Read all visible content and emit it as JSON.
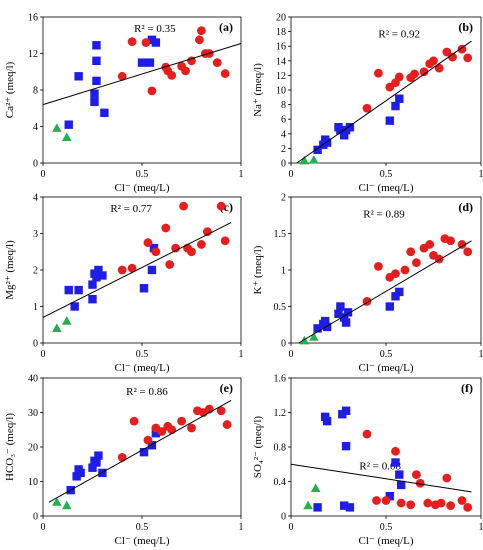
{
  "chart_data": [
    {
      "type": "scatter",
      "panel_label": "(a)",
      "r2_label": "R² = 0.35",
      "xlabel": "Cl⁻ (meq/L)",
      "ylabel": "Ca²⁺ (meq/l)",
      "xlim": [
        0,
        1
      ],
      "ylim": [
        0,
        16
      ],
      "xticks": [
        "0",
        "0.5",
        "1"
      ],
      "yticks": [
        "0",
        "4",
        "8",
        "12",
        "16"
      ],
      "trendline": {
        "x": [
          0,
          1
        ],
        "y": [
          6.4,
          13.1
        ]
      },
      "series": [
        {
          "marker": "triangle",
          "color": "#22b14c",
          "points": [
            [
              0.07,
              3.8
            ],
            [
              0.12,
              2.8
            ]
          ]
        },
        {
          "marker": "square",
          "color": "#1e1ee6",
          "points": [
            [
              0.13,
              4.2
            ],
            [
              0.18,
              9.5
            ],
            [
              0.26,
              7.6
            ],
            [
              0.26,
              6.7
            ],
            [
              0.27,
              11.2
            ],
            [
              0.27,
              9.0
            ],
            [
              0.27,
              12.9
            ],
            [
              0.31,
              5.5
            ],
            [
              0.5,
              11.0
            ],
            [
              0.54,
              11.0
            ],
            [
              0.55,
              13.5
            ],
            [
              0.57,
              13.2
            ]
          ]
        },
        {
          "marker": "circle",
          "color": "#e61e1e",
          "points": [
            [
              0.4,
              9.5
            ],
            [
              0.45,
              13.3
            ],
            [
              0.52,
              13.2
            ],
            [
              0.55,
              7.9
            ],
            [
              0.62,
              10.5
            ],
            [
              0.63,
              10.1
            ],
            [
              0.65,
              9.6
            ],
            [
              0.7,
              10.6
            ],
            [
              0.72,
              10.1
            ],
            [
              0.75,
              11.2
            ],
            [
              0.79,
              13.5
            ],
            [
              0.8,
              14.5
            ],
            [
              0.82,
              12.0
            ],
            [
              0.84,
              12.0
            ],
            [
              0.88,
              11.0
            ],
            [
              0.92,
              9.8
            ]
          ]
        }
      ]
    },
    {
      "type": "scatter",
      "panel_label": "(b)",
      "r2_label": "R² = 0.92",
      "xlabel": "Cl⁻ (meq/L)",
      "ylabel": "Na⁺ (meq/l)",
      "xlim": [
        0,
        1
      ],
      "ylim": [
        0,
        20
      ],
      "xticks": [
        "0",
        "0.5",
        "1"
      ],
      "yticks": [
        "0",
        "2",
        "4",
        "6",
        "8",
        "10",
        "12",
        "14",
        "16",
        "18",
        "20"
      ],
      "trendline": {
        "x": [
          0.03,
          0.95
        ],
        "y": [
          0,
          16.7
        ]
      },
      "series": [
        {
          "marker": "triangle",
          "color": "#22b14c",
          "points": [
            [
              0.07,
              0.3
            ],
            [
              0.12,
              0.4
            ]
          ]
        },
        {
          "marker": "square",
          "color": "#1e1ee6",
          "points": [
            [
              0.14,
              1.8
            ],
            [
              0.17,
              2.5
            ],
            [
              0.18,
              3.2
            ],
            [
              0.19,
              2.8
            ],
            [
              0.25,
              4.9
            ],
            [
              0.26,
              4.5
            ],
            [
              0.28,
              3.8
            ],
            [
              0.29,
              4.5
            ],
            [
              0.31,
              4.9
            ],
            [
              0.52,
              5.8
            ],
            [
              0.55,
              7.8
            ],
            [
              0.57,
              8.8
            ]
          ]
        },
        {
          "marker": "circle",
          "color": "#e61e1e",
          "points": [
            [
              0.4,
              7.5
            ],
            [
              0.46,
              12.3
            ],
            [
              0.52,
              10.4
            ],
            [
              0.55,
              11.0
            ],
            [
              0.57,
              11.8
            ],
            [
              0.63,
              11.7
            ],
            [
              0.65,
              12.2
            ],
            [
              0.7,
              12.5
            ],
            [
              0.73,
              13.6
            ],
            [
              0.75,
              14.0
            ],
            [
              0.78,
              13.0
            ],
            [
              0.82,
              15.2
            ],
            [
              0.85,
              14.5
            ],
            [
              0.9,
              15.6
            ],
            [
              0.93,
              14.4
            ]
          ]
        }
      ]
    },
    {
      "type": "scatter",
      "panel_label": "(c)",
      "r2_label": "R² = 0.77",
      "xlabel": "Cl⁻ (meq/L)",
      "ylabel": "Mg²⁺ (meq/l)",
      "xlim": [
        0,
        1
      ],
      "ylim": [
        0,
        4
      ],
      "xticks": [
        "0",
        "0.5",
        "1"
      ],
      "yticks": [
        "0",
        "1",
        "2",
        "3",
        "4"
      ],
      "trendline": {
        "x": [
          0,
          0.95
        ],
        "y": [
          0.7,
          3.3
        ]
      },
      "series": [
        {
          "marker": "triangle",
          "color": "#22b14c",
          "points": [
            [
              0.07,
              0.4
            ],
            [
              0.12,
              0.6
            ]
          ]
        },
        {
          "marker": "square",
          "color": "#1e1ee6",
          "points": [
            [
              0.13,
              1.45
            ],
            [
              0.16,
              1.0
            ],
            [
              0.18,
              1.45
            ],
            [
              0.25,
              1.2
            ],
            [
              0.25,
              1.6
            ],
            [
              0.26,
              1.9
            ],
            [
              0.27,
              1.8
            ],
            [
              0.28,
              2.0
            ],
            [
              0.3,
              1.85
            ],
            [
              0.51,
              1.5
            ],
            [
              0.55,
              2.0
            ],
            [
              0.56,
              2.6
            ]
          ]
        },
        {
          "marker": "circle",
          "color": "#e61e1e",
          "points": [
            [
              0.4,
              2.0
            ],
            [
              0.45,
              2.05
            ],
            [
              0.53,
              2.75
            ],
            [
              0.57,
              2.5
            ],
            [
              0.62,
              3.15
            ],
            [
              0.64,
              2.15
            ],
            [
              0.67,
              2.6
            ],
            [
              0.71,
              3.75
            ],
            [
              0.73,
              2.6
            ],
            [
              0.75,
              2.5
            ],
            [
              0.8,
              2.7
            ],
            [
              0.83,
              3.05
            ],
            [
              0.9,
              3.75
            ],
            [
              0.92,
              2.8
            ]
          ]
        }
      ]
    },
    {
      "type": "scatter",
      "panel_label": "(d)",
      "r2_label": "R² = 0.89",
      "xlabel": "Cl⁻ (meq/L)",
      "ylabel": "K⁺ (meq/l)",
      "xlim": [
        0,
        1
      ],
      "ylim": [
        0,
        2
      ],
      "xticks": [
        "0",
        "0.5",
        "1"
      ],
      "yticks": [
        "0",
        "0.5",
        "1",
        "1.5",
        "2"
      ],
      "trendline": {
        "x": [
          0.04,
          0.95
        ],
        "y": [
          0,
          1.4
        ]
      },
      "series": [
        {
          "marker": "triangle",
          "color": "#22b14c",
          "points": [
            [
              0.07,
              0.03
            ],
            [
              0.12,
              0.08
            ]
          ]
        },
        {
          "marker": "square",
          "color": "#1e1ee6",
          "points": [
            [
              0.14,
              0.2
            ],
            [
              0.17,
              0.26
            ],
            [
              0.18,
              0.3
            ],
            [
              0.19,
              0.22
            ],
            [
              0.25,
              0.4
            ],
            [
              0.26,
              0.5
            ],
            [
              0.28,
              0.35
            ],
            [
              0.29,
              0.28
            ],
            [
              0.3,
              0.42
            ],
            [
              0.52,
              0.5
            ],
            [
              0.55,
              0.64
            ],
            [
              0.57,
              0.7
            ]
          ]
        },
        {
          "marker": "circle",
          "color": "#e61e1e",
          "points": [
            [
              0.4,
              0.57
            ],
            [
              0.46,
              1.05
            ],
            [
              0.52,
              0.9
            ],
            [
              0.55,
              0.95
            ],
            [
              0.6,
              1.0
            ],
            [
              0.63,
              1.25
            ],
            [
              0.66,
              1.1
            ],
            [
              0.7,
              1.3
            ],
            [
              0.73,
              1.35
            ],
            [
              0.75,
              1.2
            ],
            [
              0.78,
              1.15
            ],
            [
              0.81,
              1.43
            ],
            [
              0.84,
              1.4
            ],
            [
              0.9,
              1.35
            ],
            [
              0.93,
              1.25
            ]
          ]
        }
      ]
    },
    {
      "type": "scatter",
      "panel_label": "(e)",
      "r2_label": "R² = 0.86",
      "xlabel": "Cl⁻ (meq/L)",
      "ylabel": "HCO₃⁻ (meq/l)",
      "xlim": [
        0,
        1
      ],
      "ylim": [
        0,
        40
      ],
      "xticks": [
        "0",
        "0.5",
        "1"
      ],
      "yticks": [
        "0",
        "10",
        "20",
        "30",
        "40"
      ],
      "trendline": {
        "x": [
          0.03,
          0.95
        ],
        "y": [
          4,
          33.5
        ]
      },
      "series": [
        {
          "marker": "triangle",
          "color": "#22b14c",
          "points": [
            [
              0.07,
              4.0
            ],
            [
              0.12,
              3.0
            ]
          ]
        },
        {
          "marker": "square",
          "color": "#1e1ee6",
          "points": [
            [
              0.14,
              7.5
            ],
            [
              0.17,
              11.5
            ],
            [
              0.18,
              13.5
            ],
            [
              0.19,
              12.5
            ],
            [
              0.25,
              14.0
            ],
            [
              0.26,
              16.0
            ],
            [
              0.27,
              15.5
            ],
            [
              0.28,
              17.5
            ],
            [
              0.3,
              12.5
            ],
            [
              0.51,
              18.5
            ],
            [
              0.55,
              20.5
            ],
            [
              0.57,
              24.0
            ]
          ]
        },
        {
          "marker": "circle",
          "color": "#e61e1e",
          "points": [
            [
              0.4,
              17.0
            ],
            [
              0.46,
              27.5
            ],
            [
              0.53,
              22.0
            ],
            [
              0.57,
              25.5
            ],
            [
              0.6,
              24.5
            ],
            [
              0.63,
              26.0
            ],
            [
              0.65,
              25.0
            ],
            [
              0.7,
              27.5
            ],
            [
              0.75,
              25.5
            ],
            [
              0.78,
              30.5
            ],
            [
              0.81,
              30.0
            ],
            [
              0.84,
              31.0
            ],
            [
              0.9,
              30.5
            ],
            [
              0.93,
              26.5
            ]
          ]
        }
      ]
    },
    {
      "type": "scatter",
      "panel_label": "(f)",
      "r2_label": "R² = 0.08",
      "xlabel": "Cl⁻ (meq/L)",
      "ylabel": "SO₄²⁻ (meq/l)",
      "xlim": [
        0,
        1
      ],
      "ylim": [
        0,
        1.6
      ],
      "xticks": [
        "0",
        "0.5",
        "1"
      ],
      "yticks": [
        "0",
        "0.4",
        "0.8",
        "1.2",
        "1.6"
      ],
      "trendline": {
        "x": [
          0,
          0.95
        ],
        "y": [
          0.6,
          0.28
        ]
      },
      "series": [
        {
          "marker": "triangle",
          "color": "#22b14c",
          "points": [
            [
              0.09,
              0.12
            ],
            [
              0.13,
              0.32
            ]
          ]
        },
        {
          "marker": "square",
          "color": "#1e1ee6",
          "points": [
            [
              0.14,
              0.1
            ],
            [
              0.18,
              1.15
            ],
            [
              0.19,
              1.1
            ],
            [
              0.27,
              1.18
            ],
            [
              0.28,
              0.12
            ],
            [
              0.29,
              1.22
            ],
            [
              0.29,
              0.81
            ],
            [
              0.31,
              0.1
            ],
            [
              0.52,
              0.23
            ],
            [
              0.55,
              0.62
            ],
            [
              0.57,
              0.48
            ],
            [
              0.58,
              0.36
            ]
          ]
        },
        {
          "marker": "circle",
          "color": "#e61e1e",
          "points": [
            [
              0.4,
              0.95
            ],
            [
              0.45,
              0.18
            ],
            [
              0.5,
              0.18
            ],
            [
              0.55,
              0.75
            ],
            [
              0.58,
              0.15
            ],
            [
              0.63,
              0.13
            ],
            [
              0.66,
              0.48
            ],
            [
              0.68,
              0.38
            ],
            [
              0.72,
              0.15
            ],
            [
              0.76,
              0.13
            ],
            [
              0.79,
              0.15
            ],
            [
              0.82,
              0.44
            ],
            [
              0.84,
              0.12
            ],
            [
              0.9,
              0.18
            ],
            [
              0.93,
              0.1
            ]
          ]
        }
      ]
    }
  ]
}
